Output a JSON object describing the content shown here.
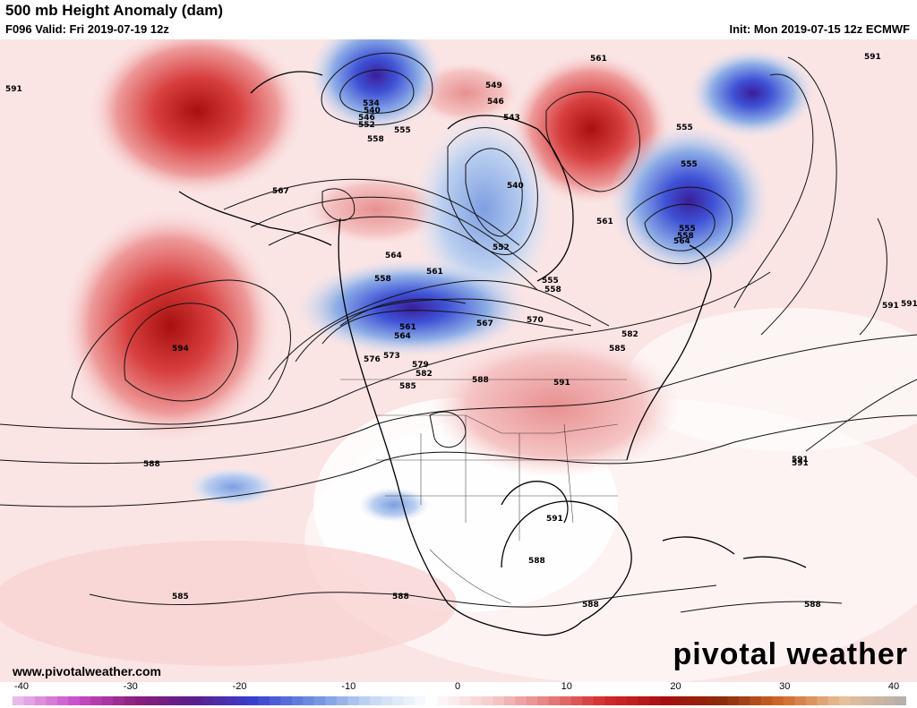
{
  "header": {
    "title": "500 mb Height Anomaly (dam)",
    "valid": "F096 Valid: Fri 2019-07-19 12z",
    "init": "Init: Mon 2019-07-15 12z ECMWF"
  },
  "footer": {
    "url": "www.pivotalweather.com",
    "brand": "pivotal weather"
  },
  "colorbar": {
    "ticks": [
      "-40",
      "-30",
      "-20",
      "-10",
      "0",
      "10",
      "20",
      "30",
      "40"
    ],
    "min": -40,
    "max": 40,
    "stops": [
      "#e9b9e9",
      "#c84cc8",
      "#8a1f7a",
      "#5a1e8a",
      "#3a3fd0",
      "#6b8fe0",
      "#c5d8f2",
      "#ffffff",
      "#f6cfcf",
      "#e88080",
      "#d22a2a",
      "#a50f0f",
      "#8b2d0a",
      "#d06a2a",
      "#e8c09a",
      "#b8b0a8"
    ]
  },
  "contour_labels": [
    "591",
    "591",
    "591",
    "594",
    "588",
    "585",
    "567",
    "561",
    "555",
    "558",
    "552",
    "534",
    "540",
    "546",
    "549",
    "546",
    "543",
    "555",
    "540",
    "552",
    "561",
    "555",
    "555",
    "558",
    "564",
    "558",
    "561",
    "564",
    "561",
    "564",
    "576",
    "573",
    "579",
    "582",
    "585",
    "588",
    "567",
    "570",
    "555",
    "558",
    "582",
    "585",
    "591",
    "591",
    "591",
    "591",
    "588",
    "588",
    "588",
    "588",
    "591"
  ],
  "anomaly_colors": {
    "strong_positive": "#b01515",
    "positive": "#e07070",
    "weak_positive": "#f6cccc",
    "neutral": "#ffffff",
    "weak_negative": "#c9d9f0",
    "negative": "#4f74d8",
    "strong_negative": "#3a1f9a"
  }
}
